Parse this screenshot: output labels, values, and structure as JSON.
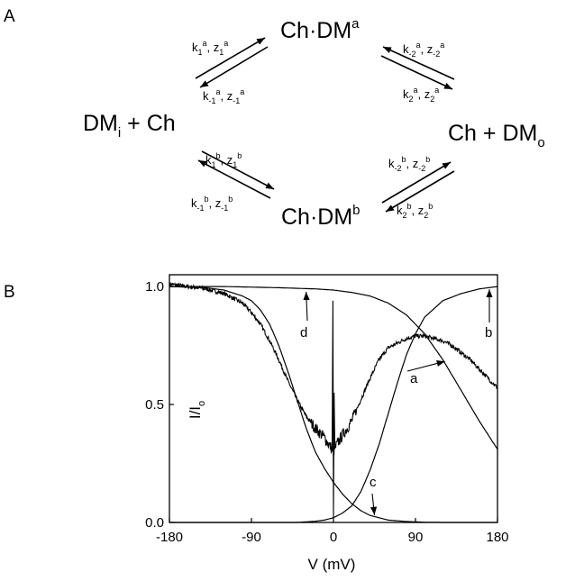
{
  "panel_a": {
    "label": "A",
    "species": {
      "left": {
        "main": "DM",
        "sub": "i",
        "rest": " + Ch"
      },
      "top": {
        "main": "Ch·DM",
        "sup": "a"
      },
      "right": {
        "main": "Ch + DM",
        "sub": "o"
      },
      "bottom": {
        "main": "Ch·DM",
        "sup": "b"
      }
    },
    "rates": [
      {
        "k": "1",
        "s": "a"
      },
      {
        "k": "-1",
        "s": "a"
      },
      {
        "k": "-2",
        "s": "a"
      },
      {
        "k": "2",
        "s": "a"
      },
      {
        "k": "1",
        "s": "b"
      },
      {
        "k": "-1",
        "s": "b"
      },
      {
        "k": "-2",
        "s": "b"
      },
      {
        "k": "2",
        "s": "b"
      }
    ],
    "rate_letters": {
      "k": "k",
      "z": "z"
    }
  },
  "panel_b": {
    "label": "B",
    "y_title": {
      "main": "I/I",
      "sub": "o"
    },
    "x_title": "V (mV)",
    "annotations": {
      "a": "a",
      "b": "b",
      "c": "c",
      "d": "d"
    }
  },
  "chart_data": {
    "type": "line",
    "xlabel": "V (mV)",
    "ylabel": "I/Io",
    "xlim": [
      -180,
      180
    ],
    "ylim": [
      0,
      1.05
    ],
    "x_ticks": [
      -180,
      -90,
      0,
      90,
      180
    ],
    "x_tick_labels": [
      "-180",
      "-90",
      "0",
      "90",
      "180"
    ],
    "y_ticks": [
      0.0,
      0.5,
      1.0
    ],
    "y_tick_labels": [
      "0.0",
      "0.5",
      "1.0"
    ],
    "grid": false,
    "series": [
      {
        "name": "a",
        "x": [
          -180,
          -160,
          -140,
          -120,
          -100,
          -90,
          -80,
          -70,
          -60,
          -50,
          -40,
          -30,
          -20,
          -10,
          -5,
          0,
          5,
          10,
          20,
          30,
          40,
          50,
          60,
          70,
          80,
          90,
          100,
          110,
          120,
          130,
          140,
          150,
          160,
          170,
          180
        ],
        "y": [
          1.01,
          1.0,
          0.99,
          0.97,
          0.93,
          0.89,
          0.84,
          0.77,
          0.69,
          0.6,
          0.52,
          0.45,
          0.4,
          0.36,
          0.33,
          0.3,
          0.34,
          0.37,
          0.43,
          0.52,
          0.61,
          0.69,
          0.74,
          0.76,
          0.78,
          0.79,
          0.79,
          0.78,
          0.77,
          0.75,
          0.72,
          0.69,
          0.65,
          0.61,
          0.57
        ]
      },
      {
        "name": "b",
        "x": [
          -180,
          -40,
          -20,
          -10,
          0,
          10,
          20,
          30,
          40,
          50,
          60,
          70,
          80,
          90,
          100,
          120,
          140,
          160,
          180
        ],
        "y": [
          0.0,
          0.0,
          0.005,
          0.01,
          0.02,
          0.04,
          0.07,
          0.13,
          0.22,
          0.33,
          0.46,
          0.59,
          0.71,
          0.8,
          0.87,
          0.94,
          0.97,
          0.99,
          1.0
        ]
      },
      {
        "name": "c",
        "x": [
          -180,
          -140,
          -120,
          -100,
          -90,
          -80,
          -70,
          -60,
          -50,
          -40,
          -30,
          -20,
          -10,
          0,
          10,
          20,
          30,
          40,
          50,
          60,
          80,
          100,
          120,
          180
        ],
        "y": [
          1.0,
          0.995,
          0.985,
          0.96,
          0.94,
          0.9,
          0.84,
          0.75,
          0.64,
          0.52,
          0.4,
          0.3,
          0.23,
          0.17,
          0.12,
          0.08,
          0.05,
          0.03,
          0.02,
          0.01,
          0.004,
          0.001,
          0.0,
          0.0
        ]
      },
      {
        "name": "d",
        "x": [
          -180,
          -120,
          -60,
          -20,
          0,
          20,
          40,
          60,
          80,
          100,
          120,
          140,
          160,
          180
        ],
        "y": [
          1.0,
          1.0,
          0.995,
          0.99,
          0.985,
          0.975,
          0.96,
          0.93,
          0.88,
          0.8,
          0.69,
          0.56,
          0.43,
          0.31
        ]
      }
    ],
    "arrows": [
      {
        "label": "a",
        "x": 60,
        "y": 0.74
      },
      {
        "label": "b",
        "x": 180,
        "y": 1.0
      },
      {
        "label": "c",
        "x": 45,
        "y": 0.02
      },
      {
        "label": "d",
        "x": -30,
        "y": 0.985
      }
    ]
  }
}
